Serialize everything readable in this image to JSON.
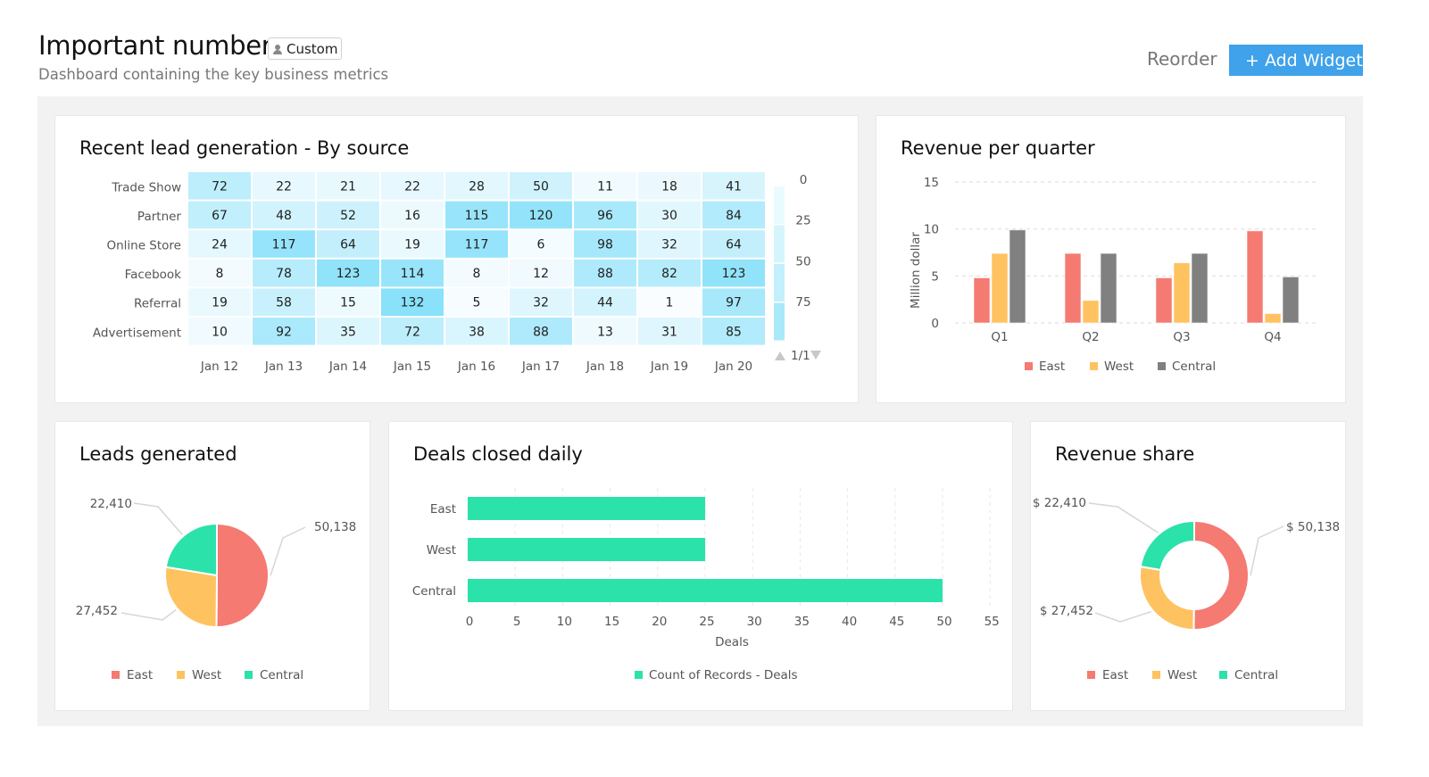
{
  "header": {
    "title": "Important numbers",
    "badge": "Custom",
    "badge_icon": "person-icon",
    "subtitle": "Dashboard containing the key business metrics",
    "reorder_label": "Reorder",
    "add_widget_label": "+ Add Widget"
  },
  "colors": {
    "accent": "#3FA2EA",
    "east": "#F47A72",
    "west": "#FEC260",
    "central_bar": "#808080",
    "central_pie": "#2AE2AA",
    "deals": "#2AE2AA",
    "board_bg": "#F2F2F2"
  },
  "widgets": {
    "heatmap": {
      "title": "Recent lead generation - By source",
      "pager": "1/1"
    },
    "revenue_quarter": {
      "title": "Revenue per quarter"
    },
    "leads": {
      "title": "Leads generated"
    },
    "deals": {
      "title": "Deals closed daily"
    },
    "revenue_share": {
      "title": "Revenue share"
    }
  },
  "chart_data": [
    {
      "type": "heatmap",
      "title": "Recent lead generation - By source",
      "rows": [
        "Trade Show",
        "Partner",
        "Online Store",
        "Facebook",
        "Referral",
        "Advertisement"
      ],
      "columns": [
        "Jan 12",
        "Jan 13",
        "Jan 14",
        "Jan 15",
        "Jan 16",
        "Jan 17",
        "Jan 18",
        "Jan 19",
        "Jan 20"
      ],
      "values": [
        [
          72,
          22,
          21,
          22,
          28,
          50,
          11,
          18,
          41
        ],
        [
          67,
          48,
          52,
          16,
          115,
          120,
          96,
          30,
          84
        ],
        [
          24,
          117,
          64,
          19,
          117,
          6,
          98,
          32,
          64
        ],
        [
          8,
          78,
          123,
          114,
          8,
          12,
          88,
          82,
          123
        ],
        [
          19,
          58,
          15,
          132,
          5,
          32,
          44,
          1,
          97
        ],
        [
          10,
          92,
          35,
          72,
          38,
          88,
          13,
          31,
          85
        ]
      ],
      "legend_ticks": [
        "0",
        "25",
        "50",
        "75"
      ],
      "legend_placement": "right"
    },
    {
      "type": "bar",
      "title": "Revenue per quarter",
      "categories": [
        "Q1",
        "Q2",
        "Q3",
        "Q4"
      ],
      "series": [
        {
          "name": "East",
          "values": [
            4.8,
            7.4,
            4.8,
            9.8
          ]
        },
        {
          "name": "West",
          "values": [
            7.4,
            2.4,
            6.4,
            1.0
          ]
        },
        {
          "name": "Central",
          "values": [
            9.9,
            7.4,
            7.4,
            4.9
          ]
        }
      ],
      "ylabel": "Million dollar",
      "yticks": [
        "0",
        "5",
        "10",
        "15"
      ],
      "ylim": [
        0,
        15
      ],
      "grid": true,
      "legend_placement": "bottom"
    },
    {
      "type": "pie",
      "title": "Leads generated",
      "labels": [
        "East",
        "West",
        "Central"
      ],
      "values": [
        50138,
        27452,
        22410
      ],
      "data_labels": [
        "50,138",
        "27,452",
        "22,410"
      ],
      "legend_placement": "bottom"
    },
    {
      "type": "bar",
      "orientation": "horizontal",
      "title": "Deals closed daily",
      "categories": [
        "East",
        "West",
        "Central"
      ],
      "values": [
        25,
        25,
        50
      ],
      "xlabel": "Deals",
      "xticks": [
        "0",
        "5",
        "10",
        "15",
        "20",
        "25",
        "30",
        "35",
        "40",
        "45",
        "50",
        "55"
      ],
      "xlim": [
        0,
        55
      ],
      "series_name": "Count of Records - Deals",
      "grid": true,
      "legend_placement": "bottom"
    },
    {
      "type": "pie",
      "variant": "donut",
      "title": "Revenue share",
      "labels": [
        "East",
        "West",
        "Central"
      ],
      "values": [
        50138,
        27452,
        22410
      ],
      "data_labels": [
        "$ 50,138",
        "$ 27,452",
        "$ 22,410"
      ],
      "legend_placement": "bottom"
    }
  ]
}
